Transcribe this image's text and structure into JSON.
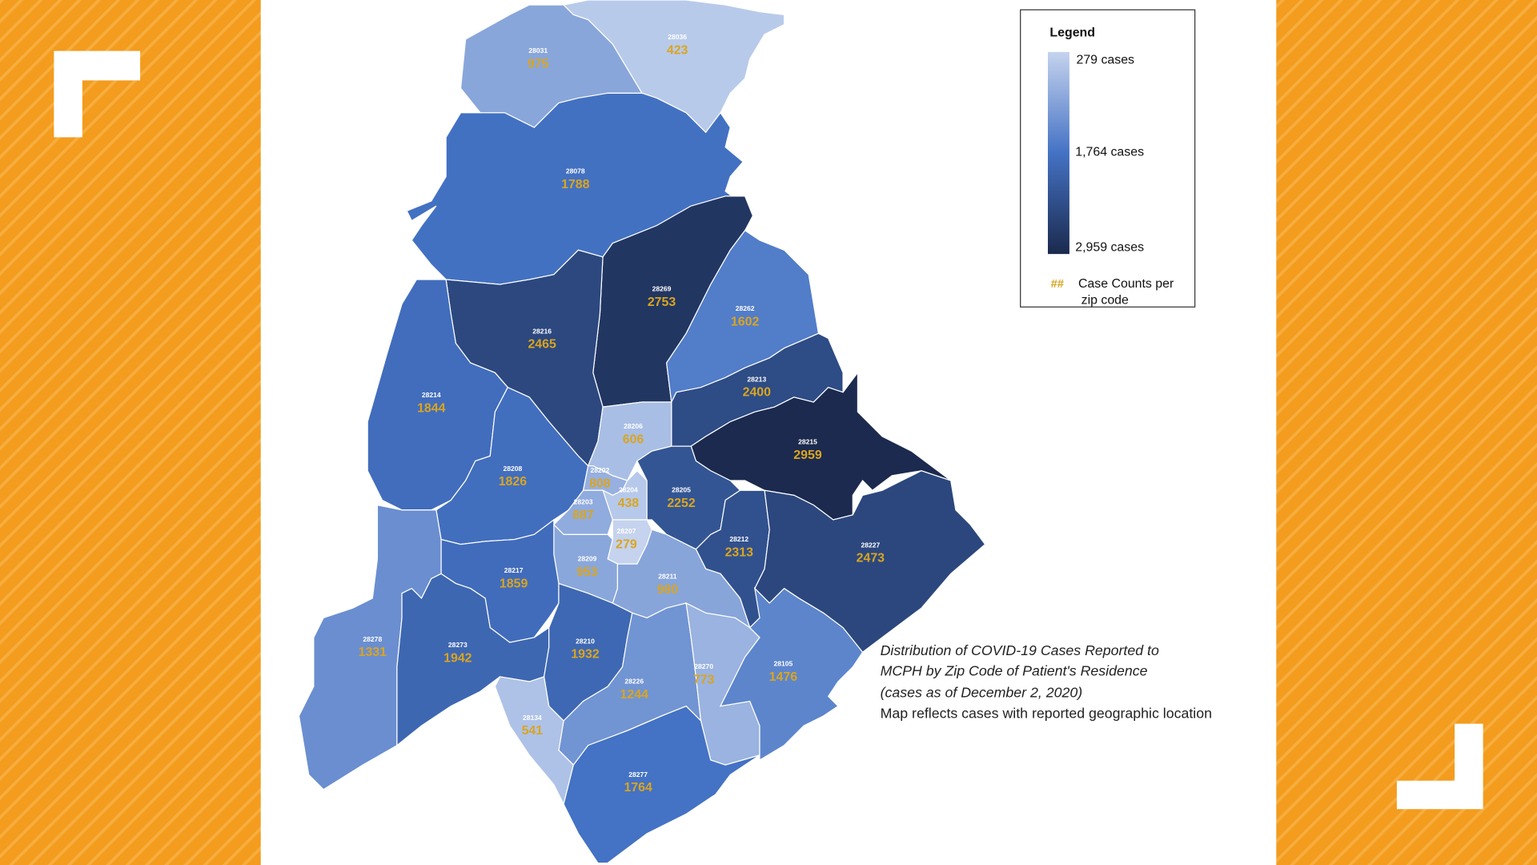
{
  "legend": {
    "title": "Legend",
    "stops": [
      {
        "value": 279,
        "label": "279 cases"
      },
      {
        "value": 1764,
        "label": "1,764 cases"
      },
      {
        "value": 2959,
        "label": "2,959 cases"
      }
    ],
    "marker": "##",
    "note_lines": [
      "Case Counts per",
      "zip code"
    ]
  },
  "regions": [
    {
      "zip": "28031",
      "cases": 975
    },
    {
      "zip": "28036",
      "cases": 423
    },
    {
      "zip": "28078",
      "cases": 1788
    },
    {
      "zip": "28269",
      "cases": 2753
    },
    {
      "zip": "28216",
      "cases": 2465
    },
    {
      "zip": "28262",
      "cases": 1602
    },
    {
      "zip": "28213",
      "cases": 2400
    },
    {
      "zip": "28215",
      "cases": 2959
    },
    {
      "zip": "28214",
      "cases": 1844
    },
    {
      "zip": "28206",
      "cases": 606
    },
    {
      "zip": "28208",
      "cases": 1826
    },
    {
      "zip": "28202",
      "cases": 808
    },
    {
      "zip": "28204",
      "cases": 438
    },
    {
      "zip": "28203",
      "cases": 887
    },
    {
      "zip": "28205",
      "cases": 2252
    },
    {
      "zip": "28207",
      "cases": 279
    },
    {
      "zip": "28212",
      "cases": 2313
    },
    {
      "zip": "28227",
      "cases": 2473
    },
    {
      "zip": "28209",
      "cases": 953
    },
    {
      "zip": "28217",
      "cases": 1859
    },
    {
      "zip": "28211",
      "cases": 980
    },
    {
      "zip": "28278",
      "cases": 1331
    },
    {
      "zip": "28273",
      "cases": 1942
    },
    {
      "zip": "28210",
      "cases": 1932
    },
    {
      "zip": "28226",
      "cases": 1244
    },
    {
      "zip": "28270",
      "cases": 773
    },
    {
      "zip": "28105",
      "cases": 1476
    },
    {
      "zip": "28134",
      "cases": 541
    },
    {
      "zip": "28277",
      "cases": 1764
    }
  ],
  "caption": [
    "Distribution of COVID-19 Cases Reported to",
    "MCPH by Zip Code of Patient's Residence",
    "(cases as of December 2, 2020)",
    "Map reflects cases with reported geographic location"
  ]
}
